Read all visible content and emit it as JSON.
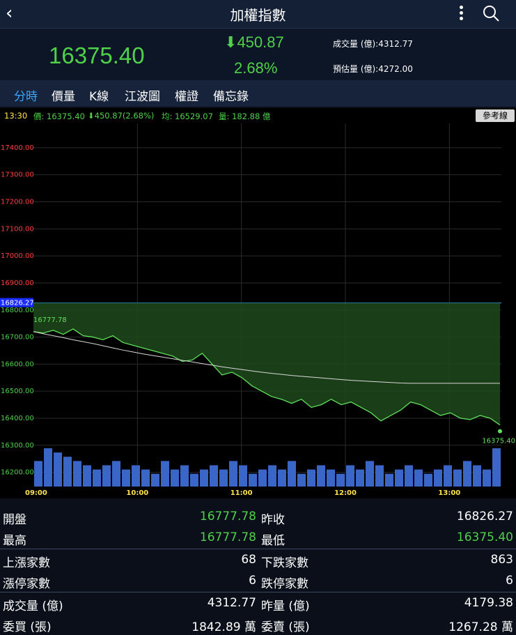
{
  "header": {
    "title": "加權指數"
  },
  "quote": {
    "price": "16375.40",
    "change": "450.87",
    "change_pct": "2.68%",
    "volume": "成交量 (億):4312.77",
    "est_volume": "預估量 (億):4272.00"
  },
  "tabs": [
    "分時",
    "價量",
    "K線",
    "江波圖",
    "權證",
    "備忘錄"
  ],
  "info": {
    "time": "13:30",
    "price": "價: 16375.40",
    "change": "450.87(2.68%)",
    "avg": "均: 16529.07",
    "vol": "量: 182.88 億",
    "ref_button": "參考線"
  },
  "chart_data": {
    "type": "line",
    "ytick_labels": [
      "17400.00",
      "17300.00",
      "17200.00",
      "17100.00",
      "17000.00",
      "16900.00",
      "16800.00",
      "16700.00",
      "16600.00",
      "16500.00",
      "16400.00",
      "16300.00",
      "16200.00"
    ],
    "ylim": [
      16150,
      17490
    ],
    "xtick_labels": [
      "09:00",
      "10:00",
      "11:00",
      "12:00",
      "13:00"
    ],
    "reference_value": 16826.27,
    "reference_label": "16826.27",
    "open_label": "16777.78",
    "last_label": "16375.40",
    "price_series": [
      16720,
      16715,
      16725,
      16710,
      16730,
      16705,
      16700,
      16690,
      16705,
      16680,
      16670,
      16660,
      16650,
      16640,
      16630,
      16610,
      16615,
      16640,
      16600,
      16560,
      16570,
      16550,
      16520,
      16500,
      16480,
      16470,
      16455,
      16470,
      16440,
      16450,
      16470,
      16450,
      16460,
      16440,
      16420,
      16390,
      16410,
      16430,
      16460,
      16450,
      16430,
      16410,
      16420,
      16400,
      16395,
      16410,
      16400,
      16375
    ],
    "avg_series": [
      16720,
      16712,
      16705,
      16698,
      16690,
      16683,
      16676,
      16668,
      16660,
      16652,
      16645,
      16638,
      16632,
      16626,
      16620,
      16614,
      16608,
      16602,
      16596,
      16590,
      16585,
      16580,
      16575,
      16570,
      16566,
      16562,
      16558,
      16555,
      16552,
      16549,
      16546,
      16543,
      16540,
      16538,
      16536,
      16534,
      16532,
      16530,
      16529,
      16529,
      16529,
      16529,
      16529,
      16529,
      16529,
      16529,
      16529,
      16529
    ],
    "volume_series": [
      6,
      9,
      8,
      7,
      6,
      5,
      4,
      5,
      6,
      4,
      5,
      4,
      3,
      6,
      4,
      5,
      3,
      4,
      5,
      4,
      6,
      5,
      3,
      4,
      5,
      4,
      6,
      3,
      4,
      5,
      4,
      3,
      5,
      4,
      6,
      5,
      3,
      4,
      5,
      4,
      3,
      4,
      5,
      4,
      6,
      5,
      4,
      9
    ],
    "colors": {
      "price": "#5fe05a",
      "avg": "#d8d8d8",
      "fill": "#1f4a1c",
      "volume": "#3a66c8",
      "reference": "#39a7ff",
      "up_tick": "#ff4040",
      "down_tick": "#4fd14a",
      "time_tick": "#ffe34d"
    }
  },
  "stats": [
    {
      "left_label": "開盤",
      "left_value": "16777.78",
      "left_color": "#4fd14a",
      "right_label": "昨收",
      "right_value": "16826.27",
      "right_color": "#ffffff"
    },
    {
      "left_label": "最高",
      "left_value": "16777.78",
      "left_color": "#4fd14a",
      "right_label": "最低",
      "right_value": "16375.40",
      "right_color": "#4fd14a"
    },
    {
      "left_label": "上漲家數",
      "left_value": "68",
      "left_color": "#ffffff",
      "right_label": "下跌家數",
      "right_value": "863",
      "right_color": "#ffffff"
    },
    {
      "left_label": "漲停家數",
      "left_value": "6",
      "left_color": "#ffffff",
      "right_label": "跌停家數",
      "right_value": "6",
      "right_color": "#ffffff"
    },
    {
      "left_label": "成交量 (億)",
      "left_value": "4312.77",
      "left_color": "#ffffff",
      "right_label": "昨量 (億)",
      "right_value": "4179.38",
      "right_color": "#ffffff"
    },
    {
      "left_label": "委買 (張)",
      "left_value": "1842.89 萬",
      "left_color": "#ffffff",
      "right_label": "委賣 (張)",
      "right_value": "1267.28 萬",
      "right_color": "#ffffff"
    }
  ]
}
